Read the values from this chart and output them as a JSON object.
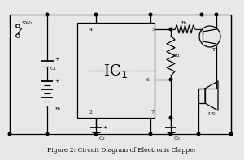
{
  "title": "Figure 2: Circuit Diagram of Electronic Clapper",
  "bg_color": "#e8e8e8",
  "line_color": "#000000",
  "text_color": "#000000",
  "watermark": "WWW.BESTENGINEERING PROJECTS.COM"
}
